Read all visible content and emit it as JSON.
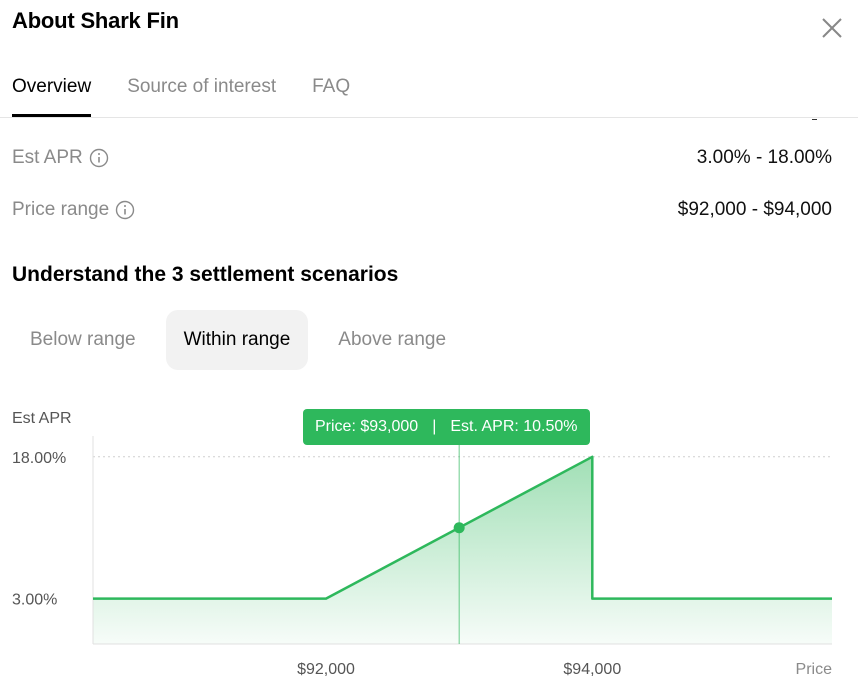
{
  "header": {
    "title": "About Shark Fin",
    "close_icon": "close-icon"
  },
  "tabs": [
    {
      "label": "Overview",
      "active": true
    },
    {
      "label": "Source of interest",
      "active": false
    },
    {
      "label": "FAQ",
      "active": false
    }
  ],
  "details": [
    {
      "label": "Est APR",
      "value": "3.00% - 18.00%",
      "icon": "info-icon"
    },
    {
      "label": "Price range",
      "value": "$92,000 - $94,000",
      "icon": "info-icon"
    }
  ],
  "scenarios": {
    "title": "Understand the 3 settlement scenarios",
    "options": [
      {
        "label": "Below range",
        "active": false
      },
      {
        "label": "Within range",
        "active": true
      },
      {
        "label": "Above range",
        "active": false
      }
    ]
  },
  "tooltip": {
    "price": "Price: $93,000",
    "separator": "|",
    "apr": "Est. APR: 10.50%"
  },
  "colors": {
    "accent": "#2eb85c",
    "muted_text": "#8a8a8a"
  },
  "chart_data": {
    "type": "area",
    "ylabel": "Est APR",
    "xlabel": "Price",
    "x_ticks": [
      {
        "value": 92000,
        "label": "$92,000"
      },
      {
        "value": 94000,
        "label": "$94,000"
      }
    ],
    "y_ticks": [
      {
        "value": 3,
        "label": "3.00%"
      },
      {
        "value": 18,
        "label": "18.00%"
      }
    ],
    "xlim": [
      90250,
      95800
    ],
    "ylim": [
      -1.8,
      20.2
    ],
    "series": [
      {
        "x": [
          90250,
          92000,
          94000,
          94000,
          95800
        ],
        "y": [
          3,
          3,
          18,
          3,
          3
        ]
      }
    ],
    "highlight": {
      "x": 93000,
      "y": 10.5
    },
    "grid": {
      "dashed_at": 18
    }
  }
}
